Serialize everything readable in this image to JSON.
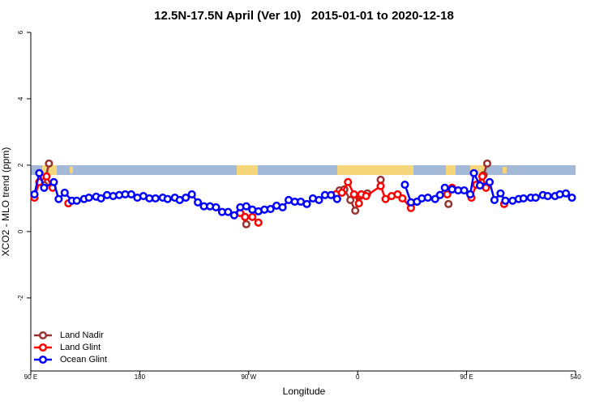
{
  "chart_data": {
    "type": "line",
    "title": "12.5N-17.5N April (Ver 10)   2015-01-01 to 2020-12-18",
    "xlabel": "Longitude",
    "ylabel": "XCO2 - MLO trend (ppm)",
    "xlim": [
      90,
      540
    ],
    "ylim": [
      -4.2,
      6
    ],
    "xticks": [
      {
        "value": 90,
        "label": "90 E"
      },
      180,
      {
        "value": 270,
        "label": "90 W"
      },
      {
        "value": 360,
        "label": "0"
      },
      {
        "value": 450,
        "label": "90 E"
      },
      540
    ],
    "yticks": [
      -2,
      0,
      2,
      4,
      6
    ],
    "legend": "bottom-left",
    "series": [
      {
        "name": "Land Nadir",
        "color": "#993333",
        "x": [
          101,
          105,
          200,
          263,
          268,
          300,
          345,
          349,
          354,
          358,
          362,
          368,
          374,
          379,
          410,
          435,
          450,
          460,
          464,
          467
        ],
        "values": [
          1.4,
          2.05,
          null,
          0.56,
          0.22,
          null,
          1.24,
          1.27,
          0.95,
          0.63,
          1.07,
          1.15,
          null,
          1.56,
          null,
          0.83,
          null,
          1.41,
          1.7,
          2.05
        ]
      },
      {
        "name": "Land Glint",
        "color": "#ff0000",
        "x": [
          93,
          97,
          103,
          108,
          115,
          121,
          200,
          263,
          267,
          273,
          278,
          320,
          342,
          347,
          352,
          357,
          361,
          363,
          367,
          379,
          383,
          388,
          393,
          397,
          404,
          409,
          420,
          434,
          438,
          450,
          454,
          458,
          463,
          466,
          474,
          481
        ],
        "values": [
          1.02,
          1.49,
          1.66,
          1.32,
          null,
          0.85,
          null,
          0.56,
          0.44,
          0.44,
          0.27,
          null,
          1.12,
          1.17,
          1.49,
          1.12,
          0.85,
          1.12,
          1.07,
          1.37,
          0.98,
          1.07,
          1.12,
          1.0,
          0.71,
          0.9,
          null,
          1.12,
          1.32,
          null,
          1.02,
          1.41,
          1.66,
          1.32,
          null,
          0.83
        ]
      },
      {
        "name": "Ocean Glint",
        "color": "#0000ff",
        "x": [
          93,
          97,
          101,
          109,
          113,
          118,
          124,
          128,
          134,
          138,
          144,
          148,
          153,
          158,
          163,
          168,
          173,
          178,
          183,
          188,
          193,
          199,
          203,
          209,
          213,
          218,
          223,
          228,
          233,
          238,
          243,
          248,
          253,
          258,
          263,
          268,
          273,
          278,
          283,
          288,
          293,
          298,
          303,
          308,
          313,
          318,
          323,
          328,
          333,
          338,
          343,
          370,
          399,
          404,
          409,
          413,
          418,
          424,
          428,
          432,
          438,
          443,
          448,
          453,
          456,
          461,
          469,
          473,
          478,
          482,
          488,
          493,
          497,
          503,
          507,
          513,
          517,
          523,
          527,
          532,
          537
        ],
        "values": [
          1.12,
          1.76,
          1.32,
          1.49,
          0.98,
          1.17,
          0.93,
          0.93,
          0.98,
          1.02,
          1.05,
          1.0,
          1.1,
          1.07,
          1.1,
          1.12,
          1.12,
          1.02,
          1.07,
          1.0,
          1.0,
          1.02,
          0.98,
          1.02,
          0.95,
          1.02,
          1.12,
          0.88,
          0.76,
          0.76,
          0.73,
          0.59,
          0.59,
          0.49,
          0.73,
          0.76,
          0.66,
          0.61,
          0.66,
          0.68,
          0.78,
          0.73,
          0.95,
          0.9,
          0.9,
          0.83,
          1.0,
          0.95,
          1.1,
          1.1,
          0.98,
          null,
          1.41,
          0.88,
          0.9,
          1.0,
          1.02,
          0.98,
          1.1,
          1.32,
          1.27,
          1.24,
          1.24,
          1.12,
          1.76,
          1.39,
          1.49,
          0.95,
          1.15,
          0.93,
          0.93,
          0.98,
          1.0,
          1.02,
          1.02,
          1.1,
          1.07,
          1.07,
          1.12,
          1.15,
          1.02
        ]
      }
    ]
  }
}
